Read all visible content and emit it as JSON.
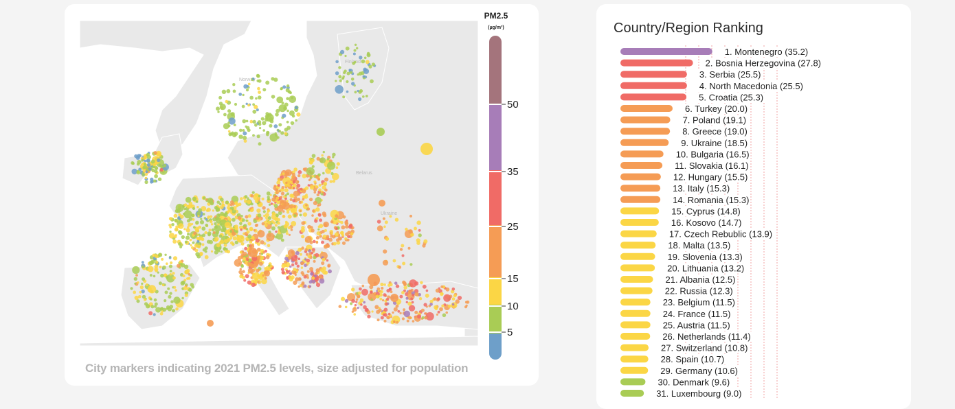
{
  "map_panel": {
    "caption": "City markers indicating 2021 PM2.5 levels, size adjusted for population",
    "legend_title": "PM2.5",
    "legend_unit": "(µg/m³)",
    "map_labels": [
      {
        "text": "Norway",
        "key": "norway"
      },
      {
        "text": "Finland",
        "key": "finland"
      },
      {
        "text": "Belarus",
        "key": "belarus"
      },
      {
        "text": "Ukraine",
        "key": "ukraine"
      }
    ]
  },
  "ranking_panel": {
    "title": "Country/Region Ranking"
  },
  "colors": {
    "band_0_5": "#6e9fc9",
    "band_5_10": "#a9cc55",
    "band_10_15": "#fbd645",
    "band_15_25": "#f59c55",
    "band_25_35": "#f06b66",
    "band_35_50": "#a77db8",
    "band_50_plus": "#a4747c",
    "land": "#e9e9e9",
    "sea": "#ffffff",
    "gridline": "#f2a3a3"
  },
  "chart_data": [
    {
      "type": "choropleth_legend",
      "title": "PM2.5",
      "unit": "(µg/m³)",
      "breaks": [
        5,
        10,
        15,
        25,
        35,
        50
      ],
      "bands": [
        {
          "from": 0,
          "to": 5,
          "color": "#6e9fc9"
        },
        {
          "from": 5,
          "to": 10,
          "color": "#a9cc55"
        },
        {
          "from": 10,
          "to": 15,
          "color": "#fbd645"
        },
        {
          "from": 15,
          "to": 25,
          "color": "#f59c55"
        },
        {
          "from": 25,
          "to": 35,
          "color": "#f06b66"
        },
        {
          "from": 35,
          "to": 50,
          "color": "#a77db8"
        },
        {
          "from": 50,
          "to": 60,
          "color": "#a4747c"
        }
      ]
    },
    {
      "type": "bar",
      "orientation": "horizontal",
      "title": "Country/Region Ranking",
      "max_value": 60,
      "grid_values": [
        25,
        30,
        35,
        40,
        45,
        50,
        55,
        60
      ],
      "grid": true,
      "items": [
        {
          "rank": 1,
          "name": "Montenegro",
          "value": 35.2,
          "label": "1. Montenegro (35.2)"
        },
        {
          "rank": 2,
          "name": "Bosnia Herzegovina",
          "value": 27.8,
          "label": "2. Bosnia Herzegovina (27.8)"
        },
        {
          "rank": 3,
          "name": "Serbia",
          "value": 25.5,
          "label": "3. Serbia (25.5)"
        },
        {
          "rank": 4,
          "name": "North Macedonia",
          "value": 25.5,
          "label": "4. North Macedonia (25.5)"
        },
        {
          "rank": 5,
          "name": "Croatia",
          "value": 25.3,
          "label": "5. Croatia (25.3)"
        },
        {
          "rank": 6,
          "name": "Turkey",
          "value": 20.0,
          "label": "6. Turkey (20.0)"
        },
        {
          "rank": 7,
          "name": "Poland",
          "value": 19.1,
          "label": "7. Poland (19.1)"
        },
        {
          "rank": 8,
          "name": "Greece",
          "value": 19.0,
          "label": "8. Greece (19.0)"
        },
        {
          "rank": 9,
          "name": "Ukraine",
          "value": 18.5,
          "label": "9. Ukraine (18.5)"
        },
        {
          "rank": 10,
          "name": "Bulgaria",
          "value": 16.5,
          "label": "10. Bulgaria (16.5)"
        },
        {
          "rank": 11,
          "name": "Slovakia",
          "value": 16.1,
          "label": "11. Slovakia (16.1)"
        },
        {
          "rank": 12,
          "name": "Hungary",
          "value": 15.5,
          "label": "12. Hungary (15.5)"
        },
        {
          "rank": 13,
          "name": "Italy",
          "value": 15.3,
          "label": "13. Italy (15.3)"
        },
        {
          "rank": 14,
          "name": "Romania",
          "value": 15.3,
          "label": "14. Romania (15.3)"
        },
        {
          "rank": 15,
          "name": "Cyprus",
          "value": 14.8,
          "label": "15. Cyprus (14.8)"
        },
        {
          "rank": 16,
          "name": "Kosovo",
          "value": 14.7,
          "label": "16. Kosovo (14.7)"
        },
        {
          "rank": 17,
          "name": "Czech Rebublic",
          "value": 13.9,
          "label": "17. Czech Rebublic (13.9)"
        },
        {
          "rank": 18,
          "name": "Malta",
          "value": 13.5,
          "label": "18. Malta (13.5)"
        },
        {
          "rank": 19,
          "name": "Slovenia",
          "value": 13.3,
          "label": "19. Slovenia (13.3)"
        },
        {
          "rank": 20,
          "name": "Lithuania",
          "value": 13.2,
          "label": "20. Lithuania (13.2)"
        },
        {
          "rank": 21,
          "name": "Albania",
          "value": 12.5,
          "label": "21. Albania (12.5)"
        },
        {
          "rank": 22,
          "name": "Russia",
          "value": 12.3,
          "label": "22. Russia (12.3)"
        },
        {
          "rank": 23,
          "name": "Belgium",
          "value": 11.5,
          "label": "23. Belgium (11.5)"
        },
        {
          "rank": 24,
          "name": "France",
          "value": 11.5,
          "label": "24. France (11.5)"
        },
        {
          "rank": 25,
          "name": "Austria",
          "value": 11.5,
          "label": "25. Austria (11.5)"
        },
        {
          "rank": 26,
          "name": "Netherlands",
          "value": 11.4,
          "label": "26. Netherlands (11.4)"
        },
        {
          "rank": 27,
          "name": "Switzerland",
          "value": 10.8,
          "label": "27. Switzerland (10.8)"
        },
        {
          "rank": 28,
          "name": "Spain",
          "value": 10.7,
          "label": "28. Spain (10.7)"
        },
        {
          "rank": 29,
          "name": "Germany",
          "value": 10.6,
          "label": "29. Germany (10.6)"
        },
        {
          "rank": 30,
          "name": "Denmark",
          "value": 9.6,
          "label": "30. Denmark (9.6)"
        },
        {
          "rank": 31,
          "name": "Luxembourg",
          "value": 9.0,
          "label": "31. Luxembourg (9.0)"
        }
      ]
    }
  ]
}
